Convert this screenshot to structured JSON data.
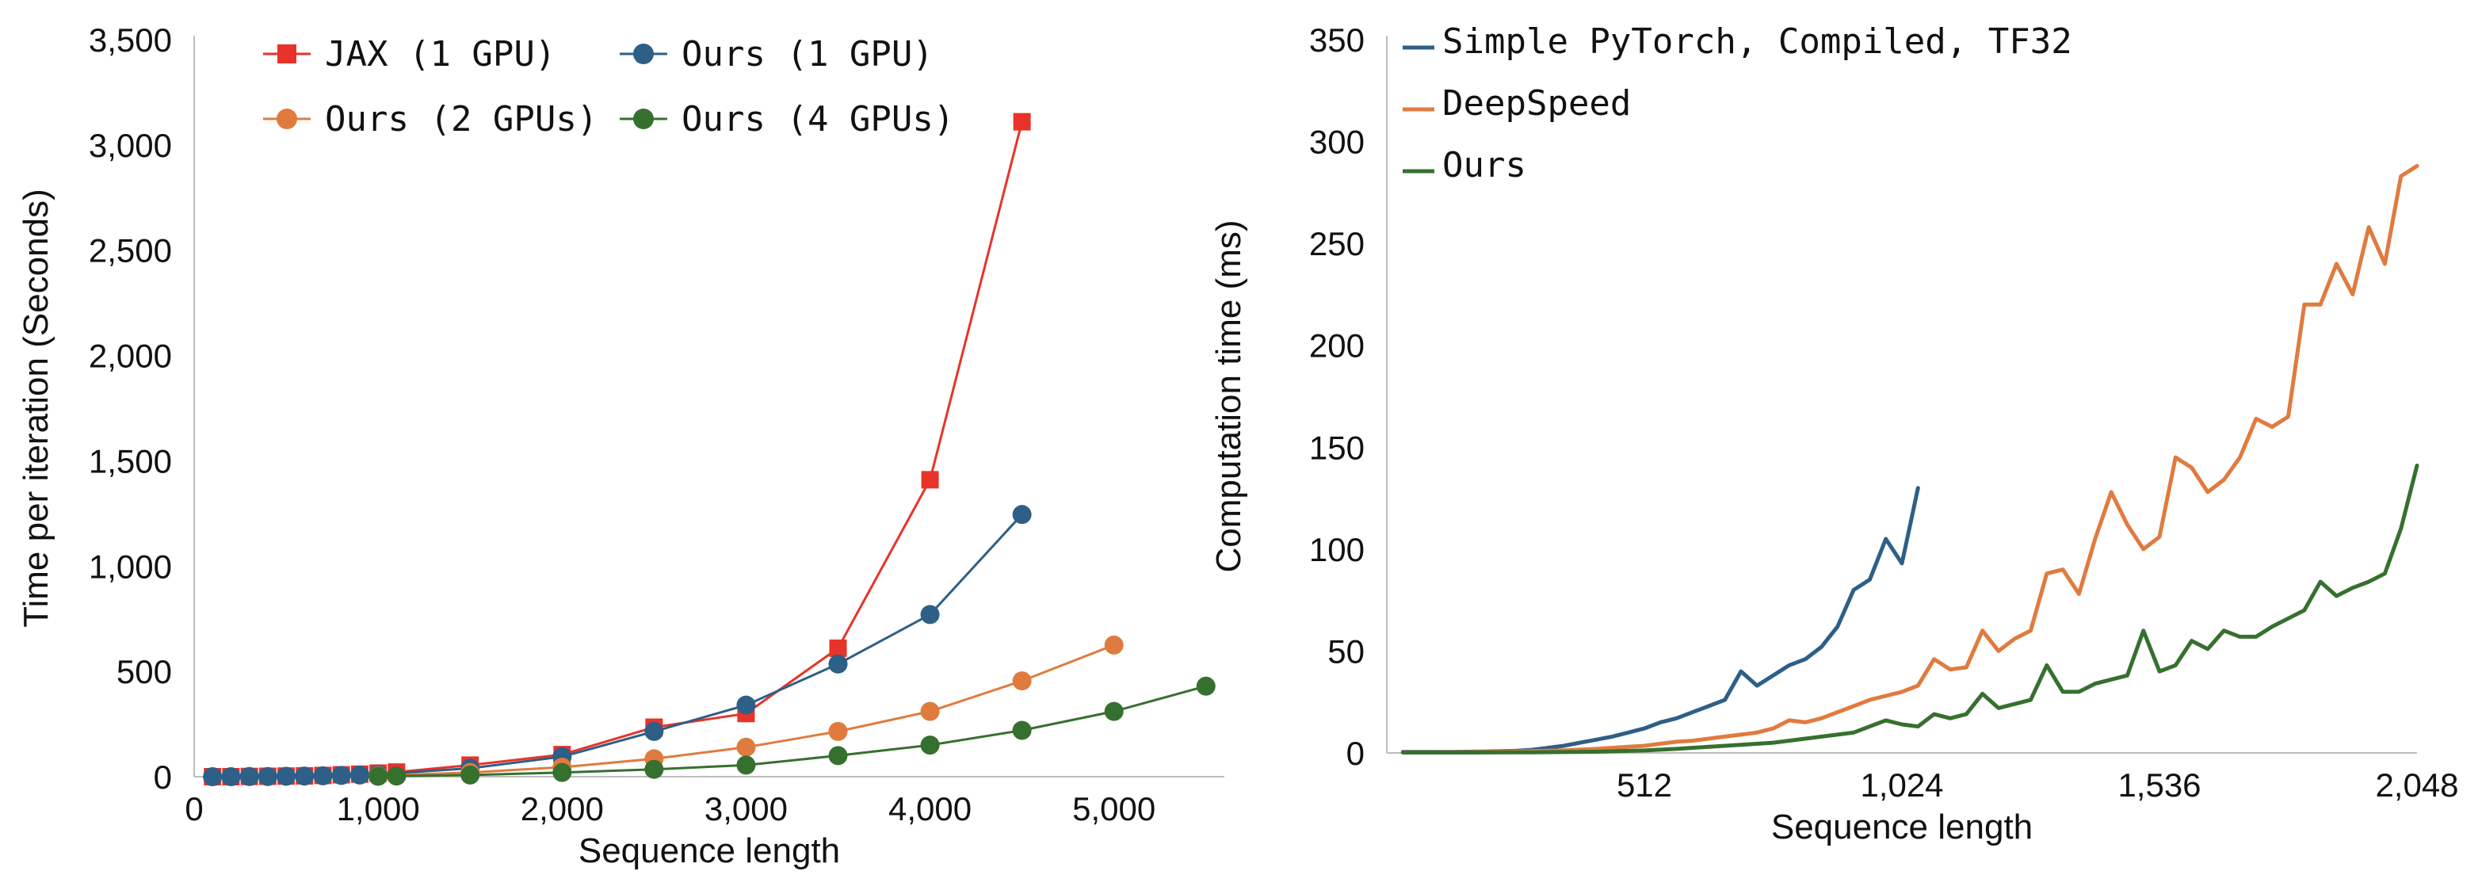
{
  "chart_data": [
    {
      "type": "line",
      "title": "",
      "xlabel": "Sequence length",
      "ylabel": "Time per iteration (Seconds)",
      "xlim": [
        0,
        5600
      ],
      "ylim": [
        0,
        3500
      ],
      "xticks": [
        0,
        1000,
        2000,
        3000,
        4000,
        5000
      ],
      "xtick_labels": [
        "0",
        "1,000",
        "2,000",
        "3,000",
        "4,000",
        "5,000"
      ],
      "yticks": [
        0,
        500,
        1000,
        1500,
        2000,
        2500,
        3000,
        3500
      ],
      "ytick_labels": [
        "0",
        "500",
        "1,000",
        "1,500",
        "2,000",
        "2,500",
        "3,000",
        "3,500"
      ],
      "legend_position": "top",
      "grid": false,
      "series": [
        {
          "name": "JAX (1 GPU)",
          "color": "#E8332A",
          "marker": "square",
          "x": [
            100,
            200,
            300,
            400,
            500,
            600,
            700,
            800,
            900,
            1000,
            1100,
            1500,
            2000,
            2500,
            3000,
            3500,
            4000,
            4500
          ],
          "y": [
            0,
            0,
            1,
            2,
            3,
            4,
            6,
            9,
            12,
            17,
            22,
            55,
            105,
            235,
            300,
            610,
            1410,
            3110
          ]
        },
        {
          "name": "Ours (1 GPU)",
          "color": "#2E5F86",
          "marker": "circle",
          "x": [
            100,
            200,
            300,
            400,
            500,
            600,
            700,
            800,
            900,
            1000,
            1500,
            2000,
            2500,
            3000,
            3500,
            4000,
            4500
          ],
          "y": [
            0,
            0,
            1,
            1,
            2,
            3,
            4,
            6,
            8,
            11,
            40,
            95,
            215,
            340,
            535,
            770,
            1245
          ]
        },
        {
          "name": "Ours (2 GPUs)",
          "color": "#E07B3F",
          "marker": "circle",
          "x": [
            1000,
            1500,
            2000,
            2500,
            3000,
            3500,
            4000,
            4500,
            5000
          ],
          "y": [
            5,
            20,
            45,
            85,
            140,
            215,
            310,
            455,
            625
          ]
        },
        {
          "name": "Ours (4 GPUs)",
          "color": "#36702F",
          "marker": "circle",
          "x": [
            1000,
            1100,
            1500,
            2000,
            2500,
            3000,
            3500,
            4000,
            4500,
            5000,
            5500
          ],
          "y": [
            2,
            3,
            8,
            20,
            35,
            55,
            100,
            150,
            220,
            310,
            430
          ]
        }
      ]
    },
    {
      "type": "line",
      "title": "",
      "xlabel": "Sequence length",
      "ylabel": "Computation time (ms)",
      "xlim": [
        0,
        2048
      ],
      "ylim": [
        0,
        350
      ],
      "xticks": [
        512,
        1024,
        1536,
        2048
      ],
      "xtick_labels": [
        "512",
        "1,024",
        "1,536",
        "2,048"
      ],
      "yticks": [
        0,
        50,
        100,
        150,
        200,
        250,
        300,
        350
      ],
      "ytick_labels": [
        "0",
        "50",
        "100",
        "150",
        "200",
        "250",
        "300",
        "350"
      ],
      "legend_position": "top-left",
      "grid": false,
      "series": [
        {
          "name": "Simple PyTorch, Compiled, TF32",
          "color": "#2E5F86",
          "x": [
            32,
            64,
            96,
            128,
            160,
            192,
            224,
            256,
            288,
            320,
            352,
            384,
            416,
            448,
            480,
            512,
            544,
            576,
            608,
            640,
            672,
            704,
            736,
            768,
            800,
            832,
            864,
            896,
            928,
            960,
            992,
            1024,
            1056
          ],
          "y": [
            0.5,
            0.5,
            0.5,
            0.5,
            0.6,
            0.7,
            0.8,
            1,
            1.5,
            2.5,
            3.5,
            5,
            6.5,
            8,
            10,
            12,
            15,
            17,
            20,
            23,
            26,
            40,
            33,
            38,
            43,
            46,
            52,
            62,
            80,
            85,
            105,
            93,
            130
          ]
        },
        {
          "name": "DeepSpeed",
          "color": "#E07B3F",
          "x": [
            32,
            96,
            160,
            224,
            288,
            352,
            416,
            480,
            512,
            544,
            576,
            608,
            640,
            672,
            704,
            736,
            768,
            800,
            832,
            864,
            896,
            928,
            960,
            992,
            1024,
            1056,
            1088,
            1120,
            1152,
            1184,
            1216,
            1248,
            1280,
            1312,
            1344,
            1376,
            1408,
            1440,
            1472,
            1504,
            1536,
            1568,
            1600,
            1632,
            1664,
            1696,
            1728,
            1760,
            1792,
            1824,
            1856,
            1888,
            1920,
            1952,
            1984,
            2016,
            2048
          ],
          "y": [
            0.3,
            0.3,
            0.4,
            0.6,
            0.9,
            1.3,
            2,
            3,
            3.5,
            4.5,
            5.5,
            6,
            7,
            8,
            9,
            10,
            12,
            16,
            15,
            17,
            20,
            23,
            26,
            28,
            30,
            33,
            46,
            41,
            42,
            60,
            50,
            56,
            60,
            88,
            90,
            78,
            105,
            128,
            112,
            100,
            106,
            145,
            140,
            128,
            134,
            145,
            164,
            160,
            165,
            220,
            220,
            240,
            225,
            258,
            240,
            283,
            288
          ]
        },
        {
          "name": "Ours",
          "color": "#36702F",
          "x": [
            32,
            160,
            288,
            416,
            512,
            576,
            640,
            704,
            768,
            832,
            896,
            928,
            960,
            992,
            1024,
            1056,
            1088,
            1120,
            1152,
            1184,
            1216,
            1248,
            1280,
            1312,
            1344,
            1376,
            1408,
            1440,
            1472,
            1504,
            1536,
            1568,
            1600,
            1632,
            1664,
            1696,
            1728,
            1760,
            1792,
            1824,
            1856,
            1888,
            1920,
            1952,
            1984,
            2016,
            2048
          ],
          "y": [
            0.2,
            0.2,
            0.3,
            0.6,
            1.2,
            2,
            3,
            4,
            5,
            7,
            9,
            10,
            13,
            16,
            14,
            13,
            19,
            17,
            19,
            29,
            22,
            24,
            26,
            43,
            30,
            30,
            34,
            36,
            38,
            60,
            40,
            43,
            55,
            51,
            60,
            57,
            57,
            62,
            66,
            70,
            84,
            77,
            81,
            84,
            88,
            110,
            141
          ]
        }
      ]
    }
  ]
}
